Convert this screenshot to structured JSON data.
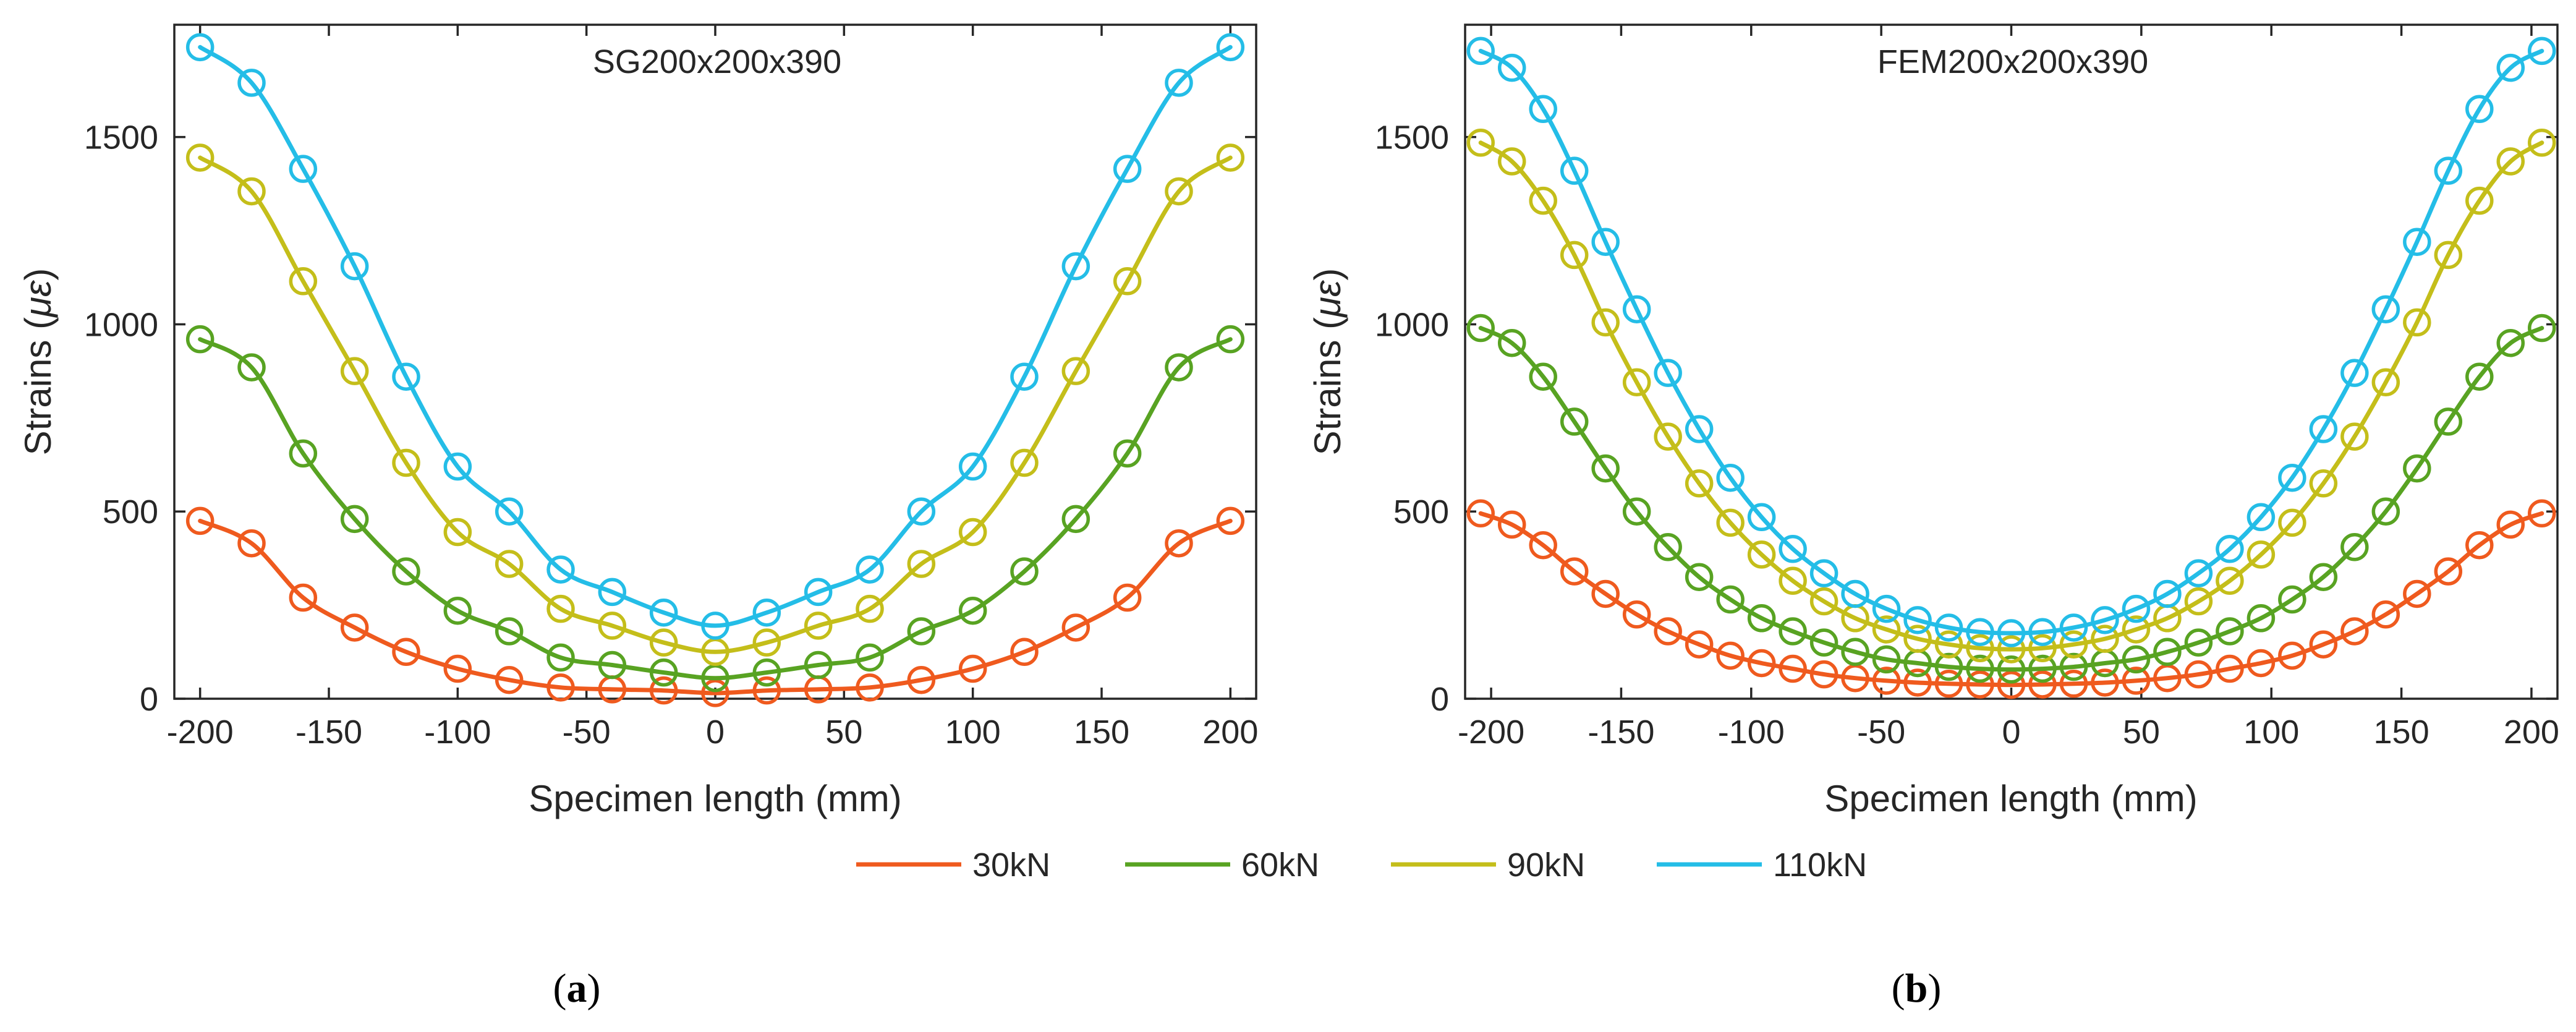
{
  "legend": [
    {
      "name": "30kN",
      "color": "#EF5A1E"
    },
    {
      "name": "60kN",
      "color": "#58A322"
    },
    {
      "name": "90kN",
      "color": "#C4BE1A"
    },
    {
      "name": "110kN",
      "color": "#24BDE7"
    }
  ],
  "chart_data": [
    {
      "type": "line",
      "caption_letter": "a",
      "title": "SG200x200x390",
      "xlabel": "Specimen length (mm)",
      "ylabel_text": "Strains (",
      "ylabel_unit": "με",
      "ylabel_close": ")",
      "xlim": [
        -210,
        210
      ],
      "ylim": [
        0,
        1800
      ],
      "xticks": [
        -200,
        -150,
        -100,
        -50,
        0,
        50,
        100,
        150,
        200
      ],
      "xtick_labels": [
        "-200",
        "-150",
        "-100",
        "-50",
        "0",
        "50",
        "100",
        "150",
        "200"
      ],
      "yticks": [
        0,
        500,
        1000,
        1500
      ],
      "ytick_labels": [
        "0",
        "500",
        "1000",
        "1500"
      ],
      "x": [
        -200,
        -180,
        -160,
        -140,
        -120,
        -100,
        -80,
        -60,
        -40,
        -20,
        0,
        20,
        40,
        60,
        80,
        100,
        120,
        140,
        160,
        180,
        200
      ],
      "series": [
        {
          "name": "30kN",
          "values": [
            475,
            415,
            270,
            190,
            125,
            80,
            50,
            30,
            25,
            22,
            15,
            22,
            25,
            30,
            50,
            80,
            125,
            190,
            270,
            415,
            475
          ]
        },
        {
          "name": "60kN",
          "values": [
            960,
            885,
            655,
            480,
            340,
            235,
            180,
            110,
            90,
            70,
            55,
            70,
            90,
            110,
            180,
            235,
            340,
            480,
            655,
            885,
            960
          ]
        },
        {
          "name": "90kN",
          "values": [
            1445,
            1355,
            1115,
            875,
            630,
            445,
            360,
            240,
            195,
            150,
            125,
            150,
            195,
            240,
            360,
            445,
            630,
            875,
            1115,
            1355,
            1445
          ]
        },
        {
          "name": "110kN",
          "values": [
            1740,
            1645,
            1415,
            1155,
            860,
            620,
            500,
            345,
            285,
            230,
            195,
            230,
            285,
            345,
            500,
            620,
            860,
            1155,
            1415,
            1645,
            1740
          ]
        }
      ]
    },
    {
      "type": "line",
      "caption_letter": "b",
      "title": "FEM200x200x390",
      "xlabel": "Specimen length (mm)",
      "ylabel_text": "Strains (",
      "ylabel_unit": "με",
      "ylabel_close": ")",
      "xlim": [
        -210,
        210
      ],
      "ylim": [
        0,
        1800
      ],
      "xticks": [
        -200,
        -150,
        -100,
        -50,
        0,
        50,
        100,
        150,
        200
      ],
      "xtick_labels": [
        "-200",
        "-150",
        "-100",
        "-50",
        "0",
        "50",
        "100",
        "150",
        "200"
      ],
      "yticks": [
        0,
        500,
        1000,
        1500
      ],
      "ytick_labels": [
        "0",
        "500",
        "1000",
        "1500"
      ],
      "x": [
        -204,
        -192,
        -180,
        -168,
        -156,
        -144,
        -132,
        -120,
        -108,
        -96,
        -84,
        -72,
        -60,
        -48,
        -36,
        -24,
        -12,
        0,
        12,
        24,
        36,
        48,
        60,
        72,
        84,
        96,
        108,
        120,
        132,
        144,
        156,
        168,
        180,
        192,
        204
      ],
      "series": [
        {
          "name": "30kN",
          "values": [
            495,
            465,
            410,
            340,
            280,
            225,
            180,
            145,
            115,
            95,
            80,
            65,
            55,
            48,
            43,
            40,
            38,
            37,
            38,
            40,
            43,
            48,
            55,
            65,
            80,
            95,
            115,
            145,
            180,
            225,
            280,
            340,
            410,
            465,
            495
          ]
        },
        {
          "name": "60kN",
          "values": [
            990,
            950,
            860,
            740,
            615,
            500,
            405,
            325,
            265,
            215,
            180,
            150,
            125,
            105,
            95,
            85,
            80,
            78,
            80,
            85,
            95,
            105,
            125,
            150,
            180,
            215,
            265,
            325,
            405,
            500,
            615,
            740,
            860,
            950,
            990
          ]
        },
        {
          "name": "90kN",
          "values": [
            1485,
            1435,
            1330,
            1185,
            1005,
            845,
            700,
            575,
            470,
            385,
            315,
            260,
            215,
            185,
            160,
            145,
            135,
            132,
            135,
            145,
            160,
            185,
            215,
            260,
            315,
            385,
            470,
            575,
            700,
            845,
            1005,
            1185,
            1330,
            1435,
            1485
          ]
        },
        {
          "name": "110kN",
          "values": [
            1730,
            1685,
            1575,
            1410,
            1220,
            1040,
            870,
            720,
            590,
            485,
            400,
            335,
            280,
            240,
            210,
            190,
            178,
            175,
            178,
            190,
            210,
            240,
            280,
            335,
            400,
            485,
            590,
            720,
            870,
            1040,
            1220,
            1410,
            1575,
            1685,
            1730
          ]
        }
      ]
    }
  ]
}
